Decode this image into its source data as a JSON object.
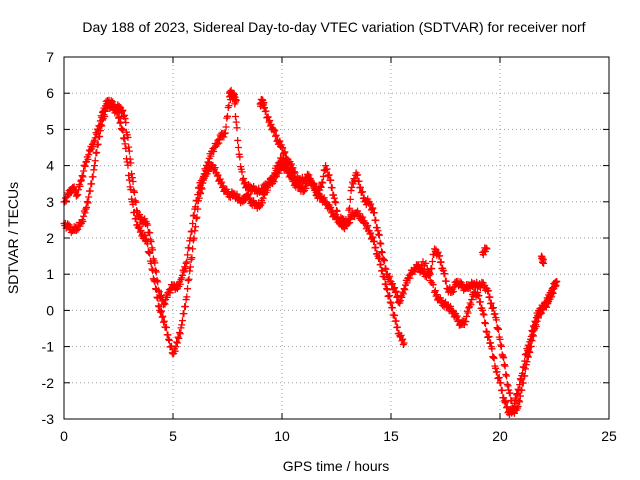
{
  "chart_data": {
    "type": "scatter",
    "title": "Day 188 of 2023, Sidereal Day-to-day VTEC variation (SDTVAR) for receiver norf",
    "xlabel": "GPS time / hours",
    "ylabel": "SDTVAR / TECUs",
    "xlim": [
      0,
      25
    ],
    "ylim": [
      -3,
      7
    ],
    "xticks": [
      "0",
      "5",
      "10",
      "15",
      "20",
      "25"
    ],
    "yticks": [
      "-3",
      "-2",
      "-1",
      "0",
      "1",
      "2",
      "3",
      "4",
      "5",
      "6",
      "7"
    ],
    "grid": true,
    "marker": "+",
    "series": [
      {
        "name": "SDTVAR",
        "color": "#ff0000",
        "x": [
          0.0,
          0.2,
          0.4,
          0.6,
          0.8,
          1.0,
          1.2,
          1.4,
          1.6,
          1.8,
          2.0,
          2.2,
          2.4,
          2.6,
          2.8,
          3.0,
          3.2,
          3.4,
          3.6,
          3.8,
          4.0,
          4.2,
          4.4,
          4.6,
          4.8,
          5.0,
          5.2,
          5.4,
          5.6,
          5.8,
          6.0,
          6.2,
          6.4,
          6.6,
          6.8,
          7.0,
          7.2,
          7.4,
          7.6,
          7.8,
          8.0,
          8.2,
          8.4,
          8.6,
          8.8,
          9.0,
          9.2,
          9.4,
          9.6,
          9.8,
          10.0,
          10.2,
          10.4,
          10.6,
          10.8,
          11.0,
          11.2,
          11.4,
          11.6,
          11.8,
          12.0,
          12.2,
          12.4,
          12.6,
          12.8,
          13.0,
          13.2,
          13.4,
          13.6,
          13.8,
          14.0,
          14.2,
          14.4,
          14.6,
          14.8,
          15.0,
          15.2,
          15.4,
          15.6,
          16.2,
          16.6,
          17.0,
          17.2,
          17.4,
          17.6,
          17.8,
          18.0,
          18.2,
          18.4,
          18.6,
          18.8,
          19.0,
          19.2,
          19.4,
          19.6,
          19.8,
          20.0,
          20.2,
          20.4,
          20.6,
          20.8,
          21.0,
          21.2,
          21.4,
          21.6,
          21.8,
          22.0,
          22.2,
          22.4,
          22.6,
          0.0,
          0.2,
          0.4,
          0.6,
          0.8,
          1.0,
          1.2,
          1.4,
          1.6,
          1.8,
          2.0,
          2.2,
          2.4,
          2.6,
          2.8,
          3.0,
          3.2,
          3.4,
          3.6,
          3.8,
          4.0,
          4.2,
          4.4,
          4.6,
          4.8,
          5.0,
          5.2,
          5.4,
          5.6,
          5.8,
          6.0,
          6.2,
          6.4,
          6.6,
          6.8,
          7.0,
          7.2,
          7.4,
          7.6,
          7.8,
          8.0,
          8.2,
          8.4,
          8.6,
          8.8,
          9.0,
          9.2,
          9.4,
          9.6,
          9.8,
          10.0,
          10.2,
          10.4,
          10.6,
          10.8,
          11.0,
          11.2,
          11.4,
          11.6,
          11.8,
          12.0,
          12.2,
          12.4,
          12.6,
          12.8,
          13.0,
          13.2,
          13.4,
          13.6,
          13.8,
          14.0,
          14.2,
          14.4,
          14.6,
          14.8,
          15.0,
          15.2,
          15.4,
          15.6,
          15.8,
          16.0,
          16.2,
          16.4,
          16.6,
          16.8,
          17.0,
          17.2,
          17.4,
          17.6,
          17.8,
          18.0,
          18.2,
          18.4,
          18.6,
          18.8,
          19.0,
          19.2,
          19.4,
          19.6,
          19.8,
          20.0,
          20.2,
          20.4,
          20.6,
          20.8,
          21.0,
          21.2,
          21.4,
          21.6,
          21.8,
          22.0,
          22.2,
          22.4,
          22.6,
          7.6,
          7.7,
          7.8,
          7.9,
          9.0,
          9.1,
          9.2,
          9.4,
          9.6,
          9.8,
          10.0,
          10.2,
          10.4,
          10.6,
          19.2,
          19.4,
          21.9,
          22.0
        ],
        "y": [
          2.4,
          2.3,
          2.2,
          2.3,
          2.4,
          2.8,
          3.3,
          4.0,
          4.8,
          5.3,
          5.7,
          5.6,
          5.5,
          5.2,
          4.6,
          3.6,
          2.7,
          2.3,
          2.1,
          1.9,
          1.3,
          0.6,
          0.0,
          -0.3,
          -0.8,
          -1.2,
          -0.9,
          -0.4,
          0.3,
          1.2,
          2.2,
          3.1,
          3.6,
          3.9,
          4.0,
          3.8,
          3.5,
          3.3,
          3.2,
          3.2,
          3.1,
          3.0,
          3.2,
          3.0,
          2.9,
          2.9,
          3.2,
          3.5,
          3.6,
          3.8,
          4.0,
          3.9,
          3.7,
          3.5,
          3.4,
          3.3,
          3.6,
          3.5,
          3.2,
          3.1,
          3.0,
          2.8,
          2.6,
          2.5,
          2.5,
          2.4,
          2.6,
          2.7,
          2.6,
          2.4,
          2.2,
          1.9,
          1.5,
          1.1,
          0.6,
          0.2,
          -0.3,
          -0.7,
          -0.9,
          1.2,
          1.3,
          0.5,
          0.3,
          0.2,
          0.1,
          0.0,
          -0.2,
          -0.4,
          -0.3,
          0.1,
          0.5,
          0.4,
          0.0,
          -0.6,
          -1.0,
          -1.6,
          -2.0,
          -2.5,
          -2.8,
          -2.8,
          -2.7,
          -2.2,
          -1.5,
          -1.0,
          -0.5,
          -0.1,
          0.1,
          0.2,
          0.5,
          0.8,
          3.0,
          3.2,
          3.4,
          3.2,
          3.6,
          4.1,
          4.4,
          4.7,
          5.1,
          5.5,
          5.8,
          5.7,
          5.6,
          5.6,
          5.3,
          4.4,
          3.3,
          2.6,
          2.5,
          2.4,
          1.9,
          1.1,
          0.4,
          0.2,
          0.5,
          0.7,
          0.6,
          0.9,
          1.3,
          2.0,
          2.8,
          3.4,
          3.7,
          4.1,
          4.4,
          4.6,
          4.8,
          4.9,
          5.9,
          5.9,
          4.5,
          3.6,
          3.4,
          3.4,
          3.3,
          3.3,
          3.4,
          3.5,
          3.7,
          4.0,
          4.2,
          4.0,
          3.8,
          3.6,
          3.6,
          3.6,
          3.7,
          3.5,
          3.3,
          3.4,
          4.0,
          3.6,
          3.1,
          2.5,
          2.3,
          2.4,
          3.4,
          3.8,
          3.4,
          3.0,
          3.0,
          2.7,
          2.2,
          1.6,
          1.0,
          0.8,
          0.5,
          0.2,
          0.6,
          0.9,
          1.1,
          1.2,
          1.1,
          1.0,
          1.0,
          1.7,
          1.5,
          1.1,
          0.6,
          0.5,
          0.8,
          0.7,
          0.6,
          0.7,
          0.7,
          0.7,
          0.7,
          0.6,
          0.2,
          -0.2,
          -0.8,
          -1.5,
          -2.2,
          -2.7,
          -2.3,
          -1.8,
          -1.2,
          -0.8,
          -0.3,
          0.0,
          0.1,
          0.3,
          0.6,
          0.8,
          6.0,
          6.0,
          5.9,
          5.8,
          5.7,
          5.8,
          5.6,
          5.2,
          5.0,
          4.7,
          4.5,
          4.2,
          4.0,
          3.8,
          1.6,
          1.7,
          1.5,
          1.3
        ]
      }
    ]
  }
}
